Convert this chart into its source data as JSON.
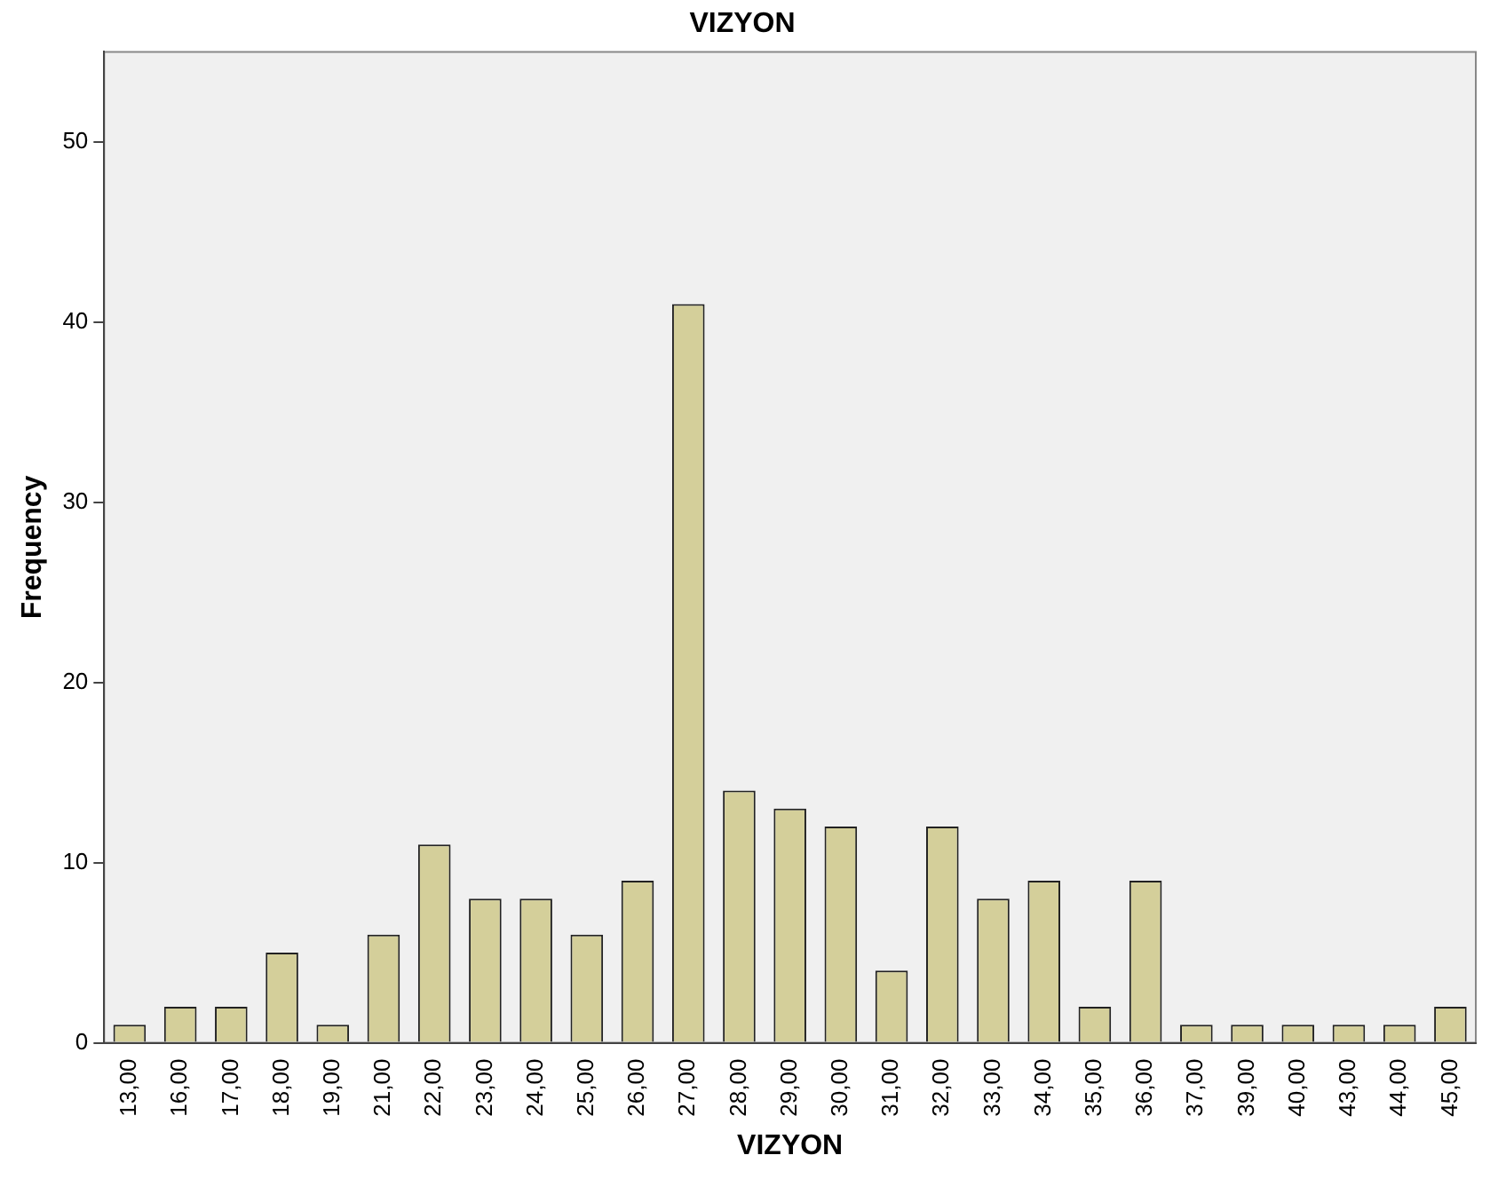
{
  "chart_data": {
    "type": "bar",
    "title": "VIZYON",
    "xlabel": "VIZYON",
    "ylabel": "Frequency",
    "categories": [
      "13,00",
      "16,00",
      "17,00",
      "18,00",
      "19,00",
      "21,00",
      "22,00",
      "23,00",
      "24,00",
      "25,00",
      "26,00",
      "27,00",
      "28,00",
      "29,00",
      "30,00",
      "31,00",
      "32,00",
      "33,00",
      "34,00",
      "35,00",
      "36,00",
      "37,00",
      "39,00",
      "40,00",
      "43,00",
      "44,00",
      "45,00"
    ],
    "values": [
      1,
      2,
      2,
      5,
      1,
      6,
      11,
      8,
      8,
      6,
      9,
      41,
      14,
      13,
      12,
      4,
      12,
      8,
      9,
      2,
      9,
      1,
      1,
      1,
      1,
      1,
      2
    ],
    "color": "#d4cf9a",
    "ylim": [
      0,
      55
    ],
    "yticks": [
      0,
      10,
      20,
      30,
      40,
      50
    ],
    "grid": false,
    "legend": false
  }
}
